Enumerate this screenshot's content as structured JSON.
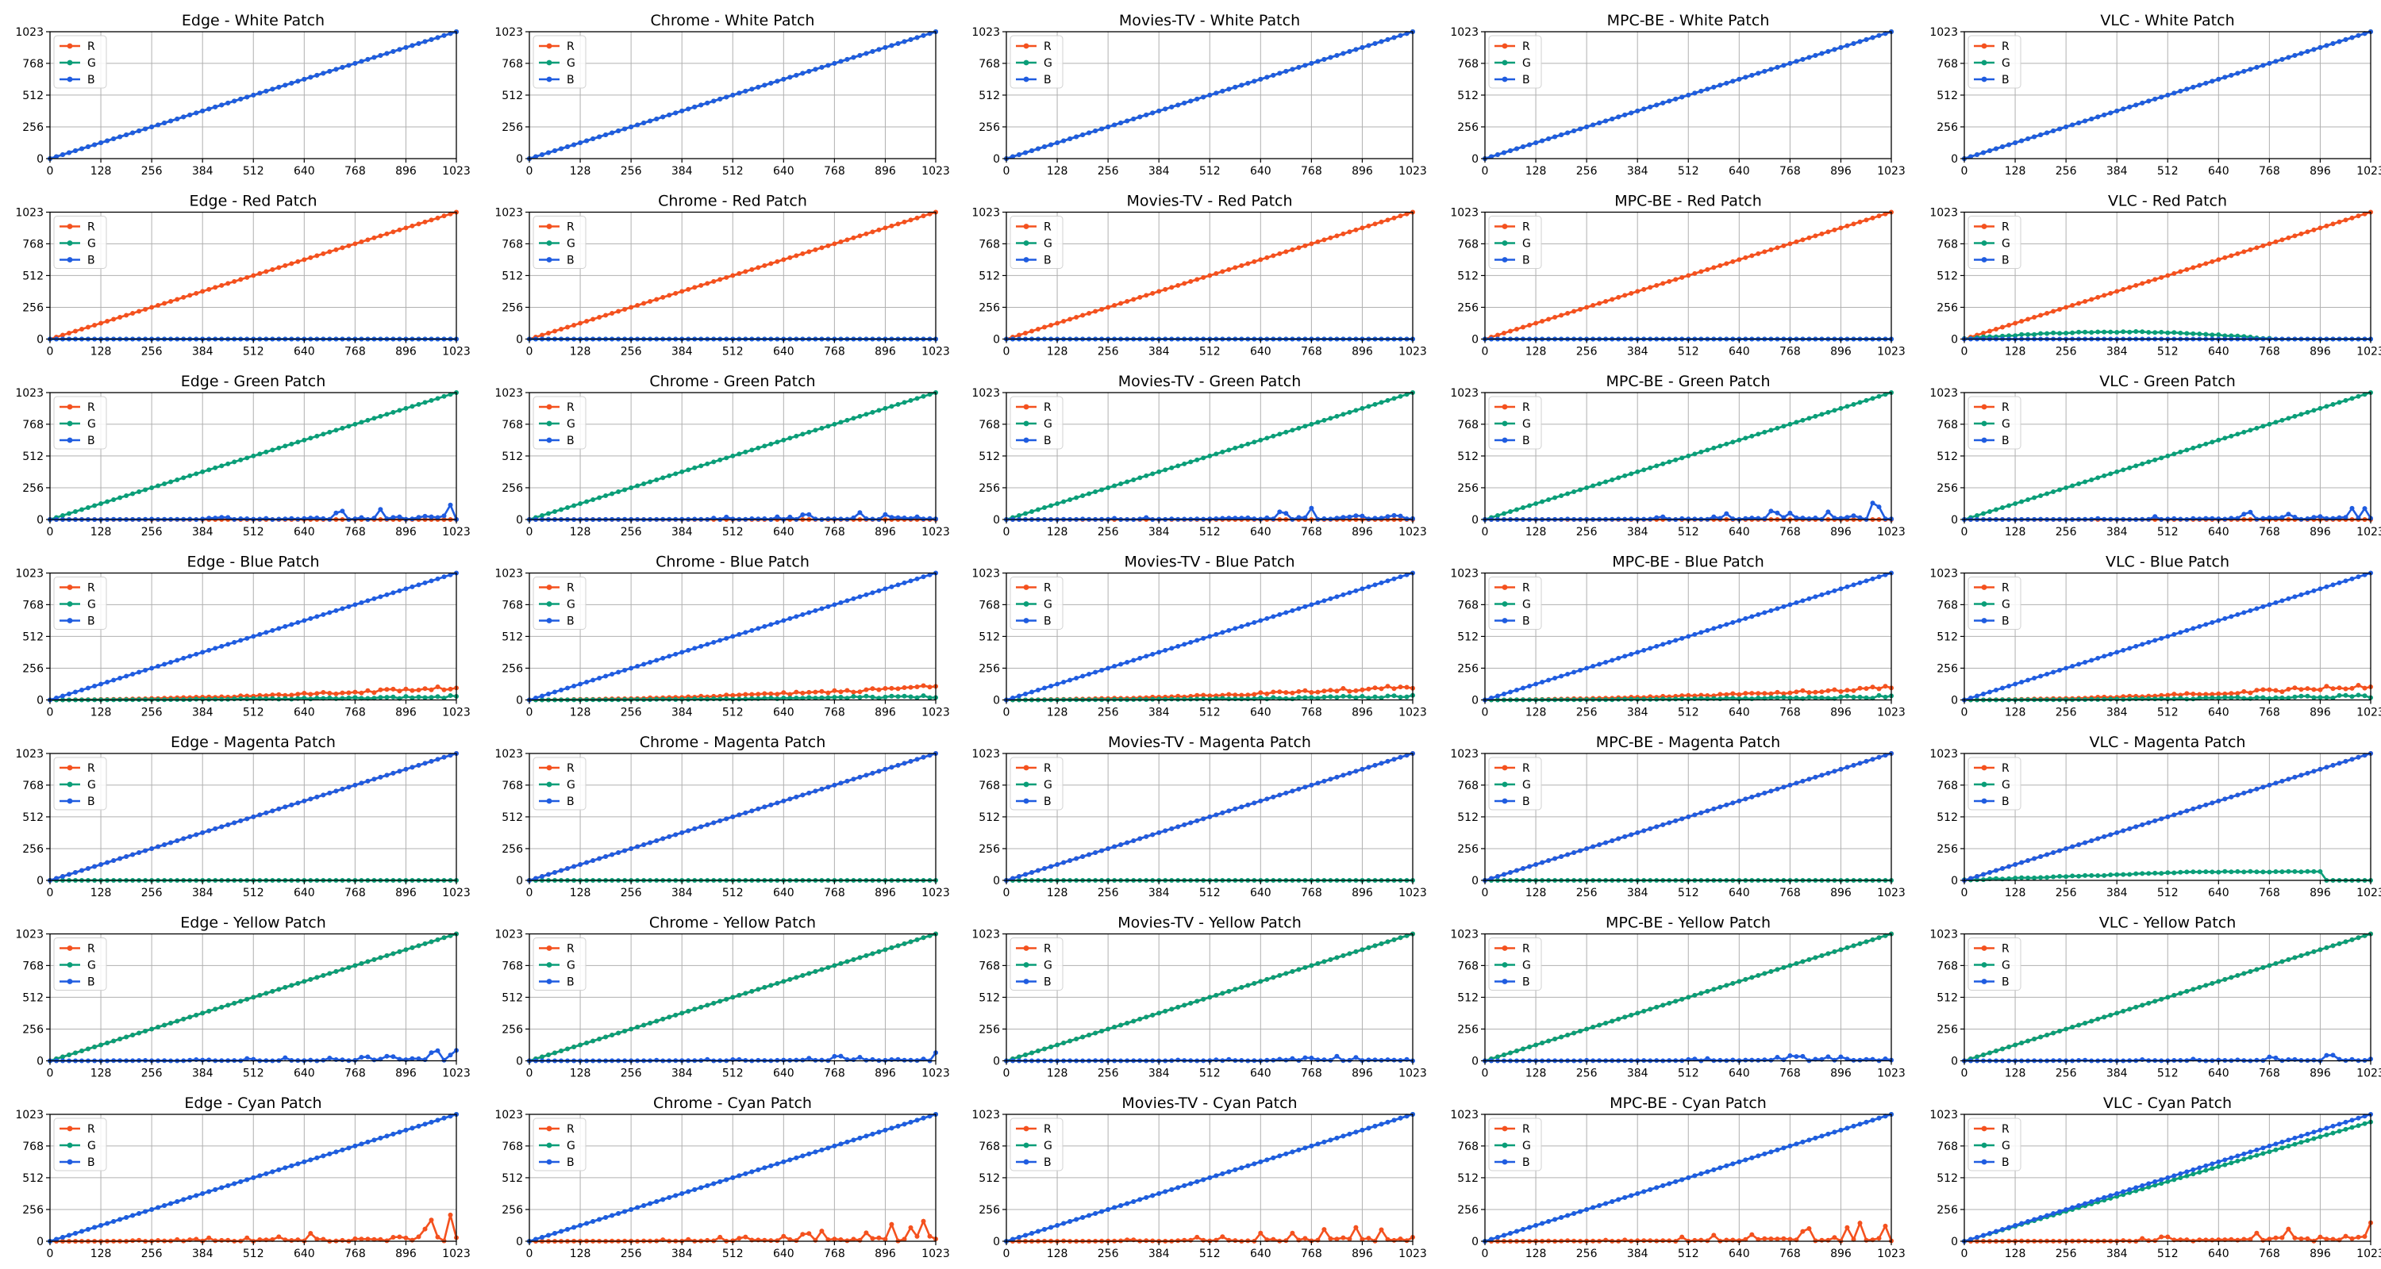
{
  "figure": {
    "players": [
      "Edge",
      "Chrome",
      "Movies-TV",
      "MPC-BE",
      "VLC"
    ],
    "patches": [
      "White Patch",
      "Red Patch",
      "Green Patch",
      "Blue Patch",
      "Magenta Patch",
      "Yellow Patch",
      "Cyan Patch"
    ],
    "title_separator": " - ",
    "colors": {
      "R": "#f4511e",
      "G": "#0a9e78",
      "B": "#1f5ce0"
    }
  },
  "chart_data": {
    "type": "line",
    "layout": "grid 7 rows (patches) x 5 columns (players)",
    "x": {
      "range": [
        0,
        1023
      ],
      "sample_step": 16,
      "ticks": [
        0,
        128,
        256,
        384,
        512,
        640,
        768,
        896,
        1023
      ]
    },
    "y": {
      "range": [
        0,
        1023
      ],
      "ticks": [
        0,
        256,
        512,
        768,
        1023
      ]
    },
    "grid": true,
    "legend": {
      "placement": "top-left",
      "entries": [
        "R",
        "G",
        "B"
      ]
    },
    "series_model": {
      "White Patch": {
        "R": "identity",
        "G": "identity",
        "B": "identity"
      },
      "Red Patch": {
        "R": "identity",
        "G": "zero",
        "B": "zero"
      },
      "Green Patch": {
        "R": "zero",
        "G": "identity",
        "B": "noise"
      },
      "Blue Patch": {
        "R": "noise_ramp",
        "G": "noise_ramp_small",
        "B": "identity"
      },
      "Magenta Patch": {
        "R": "identity",
        "G": "zero",
        "B": "identity"
      },
      "Yellow Patch": {
        "R": "identity",
        "G": "identity",
        "B": "noise"
      },
      "Cyan Patch": {
        "R": "noise",
        "G": "identity",
        "B": "identity"
      }
    },
    "exceptions": {
      "VLC - Red Patch": {
        "G": "hump_to_776_peak_60"
      },
      "VLC - Magenta Patch": {
        "G": "hump_to_900_peak_70"
      },
      "VLC - Cyan Patch": {
        "G": "slope_0.94"
      }
    },
    "noise_peaks": {
      "Edge": {
        "Green Patch": 140,
        "Blue Patch": 110,
        "Yellow Patch": 95,
        "Cyan Patch": 220
      },
      "Chrome": {
        "Green Patch": 100,
        "Blue Patch": 120,
        "Yellow Patch": 70,
        "Cyan Patch": 180
      },
      "Movies-TV": {
        "Green Patch": 180,
        "Blue Patch": 120,
        "Yellow Patch": 60,
        "Cyan Patch": 190
      },
      "MPC-BE": {
        "Green Patch": 150,
        "Blue Patch": 110,
        "Yellow Patch": 85,
        "Cyan Patch": 190
      },
      "VLC": {
        "Green Patch": 130,
        "Blue Patch": 130,
        "Yellow Patch": 75,
        "Cyan Patch": 200
      }
    }
  }
}
